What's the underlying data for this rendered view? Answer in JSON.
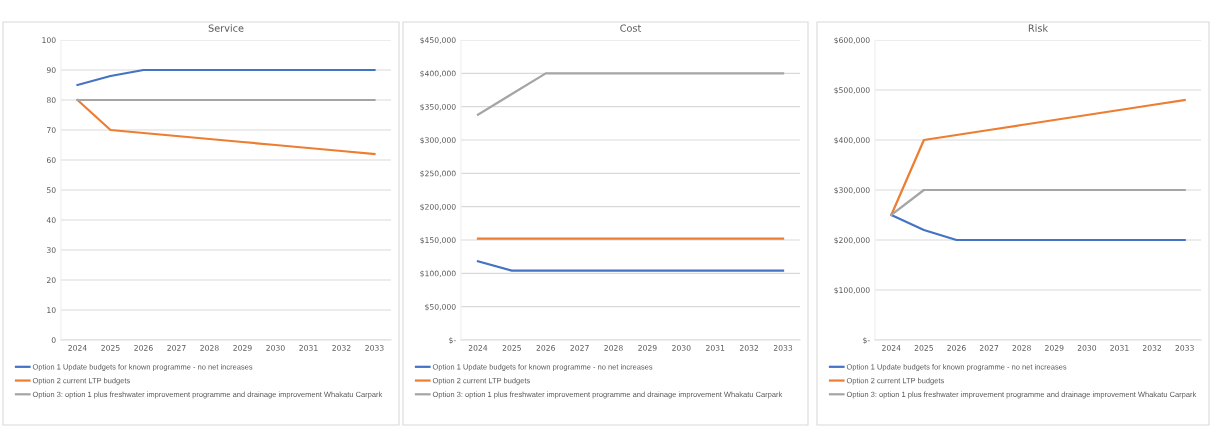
{
  "chart_data": [
    {
      "type": "line",
      "title": "Service",
      "categories": [
        "2024",
        "2025",
        "2026",
        "2027",
        "2028",
        "2029",
        "2030",
        "2031",
        "2032",
        "2033"
      ],
      "series": [
        {
          "name": "Option 1 Update budgets for known programme - no net increases",
          "color": "#4472c4",
          "values": [
            85,
            88,
            90,
            90,
            90,
            90,
            90,
            90,
            90,
            90
          ]
        },
        {
          "name": "Option 2 current LTP budgets",
          "color": "#ed7d31",
          "values": [
            80,
            70,
            69,
            68,
            67,
            66,
            65,
            64,
            63,
            62
          ]
        },
        {
          "name": "Option 3: option 1 plus freshwater improvement programme and drainage improvement Whakatu Carpark",
          "color": "#a5a5a5",
          "values": [
            80,
            80,
            80,
            80,
            80,
            80,
            80,
            80,
            80,
            80
          ]
        }
      ],
      "ylim": [
        0,
        100
      ],
      "yticks": [
        0,
        10,
        20,
        30,
        40,
        50,
        60,
        70,
        80,
        90,
        100
      ],
      "grid": "y",
      "legend": "bottom",
      "marker": "none",
      "line_style": "solid"
    },
    {
      "type": "line",
      "title": "Cost",
      "categories": [
        "2024",
        "2025",
        "2026",
        "2027",
        "2028",
        "2029",
        "2030",
        "2031",
        "2032",
        "2033"
      ],
      "series": [
        {
          "name": "Option 1 Update budgets for known programme - no net increases",
          "color": "#4472c4",
          "values": [
            118000,
            104000,
            104000,
            104000,
            104000,
            104000,
            104000,
            104000,
            104000,
            104000
          ]
        },
        {
          "name": "Option 2 current LTP budgets",
          "color": "#ed7d31",
          "values": [
            152000,
            152000,
            152000,
            152000,
            152000,
            152000,
            152000,
            152000,
            152000,
            152000
          ]
        },
        {
          "name": "Option 3: option 1 plus freshwater improvement programme and drainage improvement Whakatu Carpark",
          "color": "#a5a5a5",
          "values": [
            338000,
            369000,
            400000,
            400000,
            400000,
            400000,
            400000,
            400000,
            400000,
            400000
          ]
        }
      ],
      "ylim": [
        0,
        450000
      ],
      "yticks": [
        {
          "value": 0,
          "label": "$-"
        },
        {
          "value": 50000,
          "label": "$50,000"
        },
        {
          "value": 100000,
          "label": "$100,000"
        },
        {
          "value": 150000,
          "label": "$150,000"
        },
        {
          "value": 200000,
          "label": "$200,000"
        },
        {
          "value": 250000,
          "label": "$250,000"
        },
        {
          "value": 300000,
          "label": "$300,000"
        },
        {
          "value": 350000,
          "label": "$350,000"
        },
        {
          "value": 400000,
          "label": "$400,000"
        },
        {
          "value": 450000,
          "label": "$450,000"
        }
      ],
      "grid": "y",
      "legend": "bottom",
      "marker": "none",
      "line_style": "solid"
    },
    {
      "type": "line",
      "title": "Risk",
      "categories": [
        "2024",
        "2025",
        "2026",
        "2027",
        "2028",
        "2029",
        "2030",
        "2031",
        "2032",
        "2033"
      ],
      "series": [
        {
          "name": "Option 1 Update budgets for known programme - no net increases",
          "color": "#4472c4",
          "values": [
            250000,
            220000,
            200000,
            200000,
            200000,
            200000,
            200000,
            200000,
            200000,
            200000
          ]
        },
        {
          "name": "Option 2 current LTP budgets",
          "color": "#ed7d31",
          "values": [
            250000,
            400000,
            410000,
            420000,
            430000,
            440000,
            450000,
            460000,
            470000,
            480000
          ]
        },
        {
          "name": "Option 3: option 1 plus freshwater improvement programme and drainage improvement Whakatu Carpark",
          "color": "#a5a5a5",
          "values": [
            250000,
            300000,
            300000,
            300000,
            300000,
            300000,
            300000,
            300000,
            300000,
            300000
          ]
        }
      ],
      "ylim": [
        0,
        600000
      ],
      "yticks": [
        {
          "value": 0,
          "label": "$-"
        },
        {
          "value": 100000,
          "label": "$100,000"
        },
        {
          "value": 200000,
          "label": "$200,000"
        },
        {
          "value": 300000,
          "label": "$300,000"
        },
        {
          "value": 400000,
          "label": "$400,000"
        },
        {
          "value": 500000,
          "label": "$500,000"
        },
        {
          "value": 600000,
          "label": "$600,000"
        }
      ],
      "grid": "y",
      "legend": "bottom",
      "marker": "none",
      "line_style": "solid"
    }
  ]
}
